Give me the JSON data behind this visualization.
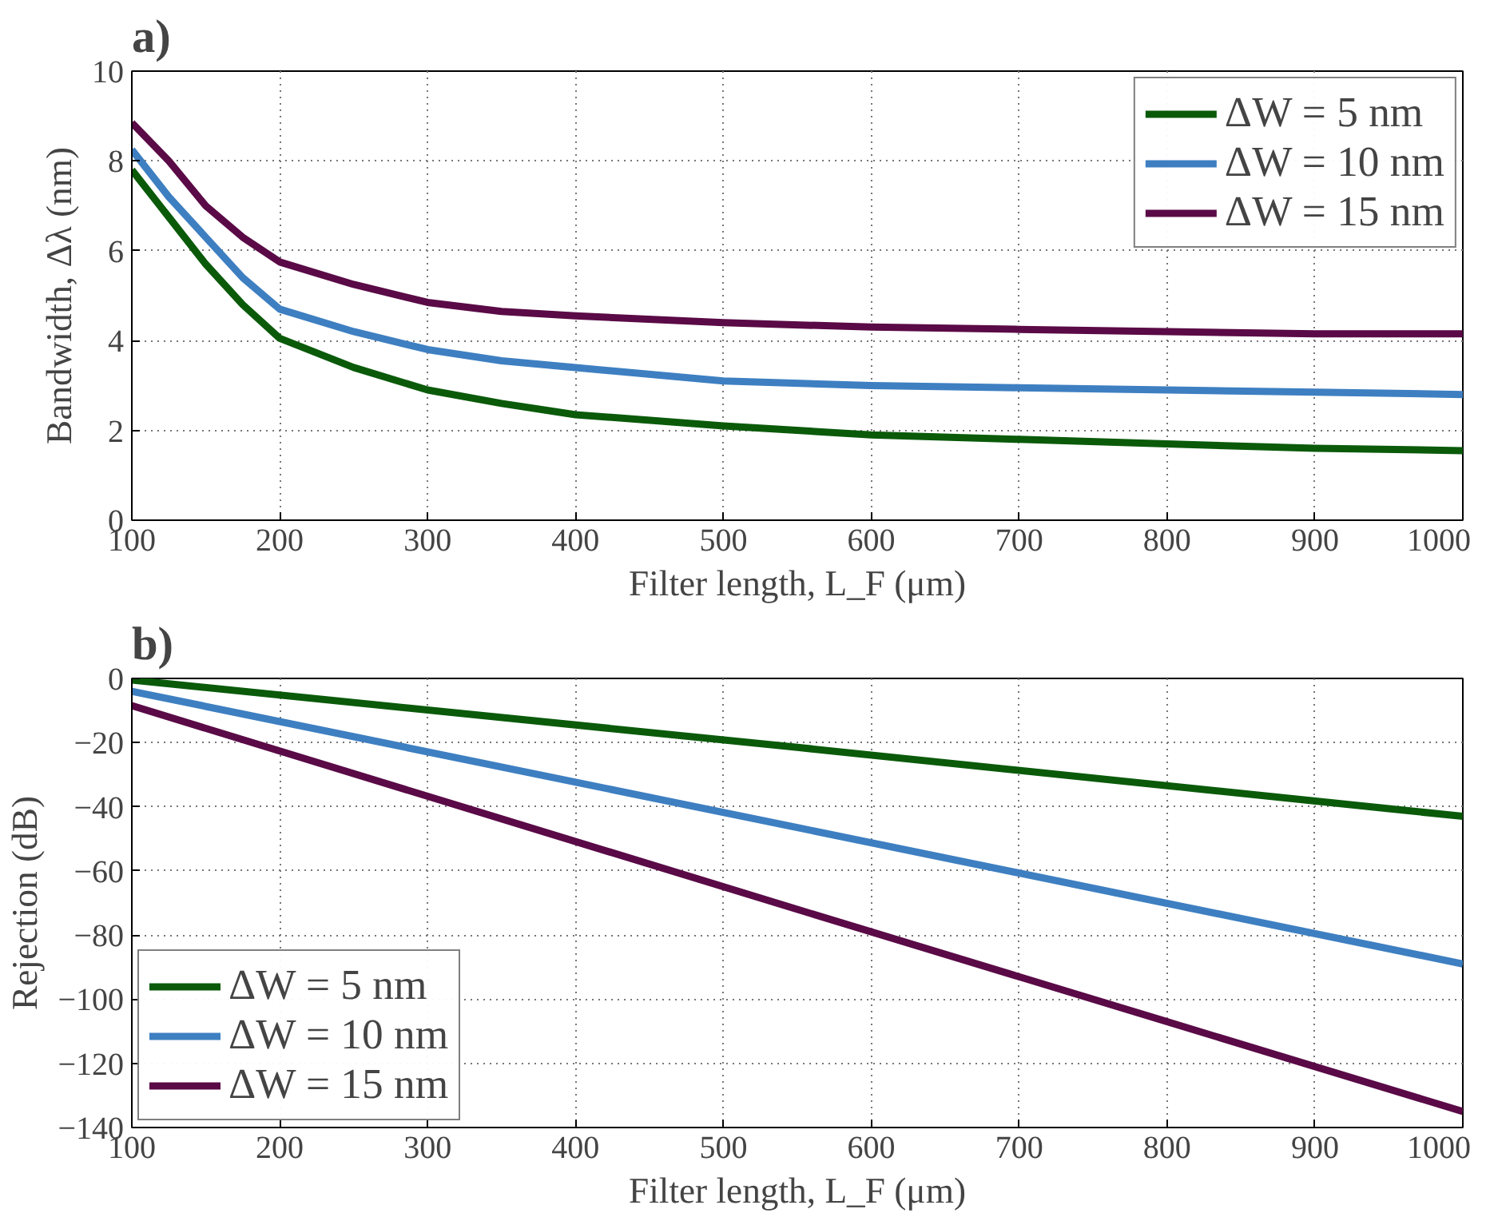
{
  "chart_data": [
    {
      "type": "line",
      "title": "a)",
      "xlabel": "Filter length, L_F (μm)",
      "ylabel": "Bandwidth, Δλ (nm)",
      "xlim": [
        100,
        1000
      ],
      "xticks": [
        100,
        200,
        300,
        400,
        500,
        600,
        700,
        800,
        900,
        1000
      ],
      "ylim": [
        0,
        10
      ],
      "yticks": [
        0,
        2,
        4,
        6,
        8,
        10
      ],
      "grid": true,
      "legend": "top right",
      "line_style": "solid",
      "x": [
        100,
        125,
        150,
        175,
        200,
        250,
        300,
        350,
        400,
        500,
        600,
        700,
        800,
        900,
        1000
      ],
      "series": [
        {
          "name": "ΔW = 5 nm",
          "color": "#0a5a0a",
          "values": [
            7.8,
            6.75,
            5.7,
            4.8,
            4.05,
            3.4,
            2.9,
            2.6,
            2.35,
            2.1,
            1.9,
            1.8,
            1.7,
            1.6,
            1.55
          ]
        },
        {
          "name": "ΔW = 10 nm",
          "color": "#3e7fc1",
          "values": [
            8.25,
            7.2,
            6.3,
            5.4,
            4.7,
            4.2,
            3.8,
            3.55,
            3.4,
            3.1,
            3.0,
            2.95,
            2.9,
            2.85,
            2.8
          ]
        },
        {
          "name": "ΔW = 15 nm",
          "color": "#5a0a46",
          "values": [
            8.85,
            8.0,
            7.0,
            6.3,
            5.75,
            5.25,
            4.85,
            4.65,
            4.55,
            4.4,
            4.3,
            4.25,
            4.2,
            4.15,
            4.15
          ]
        }
      ]
    },
    {
      "type": "line",
      "title": "b)",
      "xlabel": "Filter length, L_F (μm)",
      "ylabel": "Rejection (dB)",
      "xlim": [
        100,
        1000
      ],
      "xticks": [
        100,
        200,
        300,
        400,
        500,
        600,
        700,
        800,
        900,
        1000
      ],
      "ylim": [
        -140,
        0
      ],
      "yticks": [
        -140,
        -120,
        -100,
        -80,
        -60,
        -40,
        -20,
        0
      ],
      "grid": true,
      "legend": "bottom left",
      "line_style": "solid",
      "x": [
        100,
        550,
        1000
      ],
      "series": [
        {
          "name": "ΔW = 5 nm",
          "color": "#0a5a0a",
          "values": [
            -0.5,
            -21.5,
            -43
          ]
        },
        {
          "name": "ΔW = 10 nm",
          "color": "#3e7fc1",
          "values": [
            -4,
            -46.5,
            -89
          ]
        },
        {
          "name": "ΔW = 15 nm",
          "color": "#5a0a46",
          "values": [
            -8.5,
            -72,
            -135
          ]
        }
      ]
    }
  ]
}
